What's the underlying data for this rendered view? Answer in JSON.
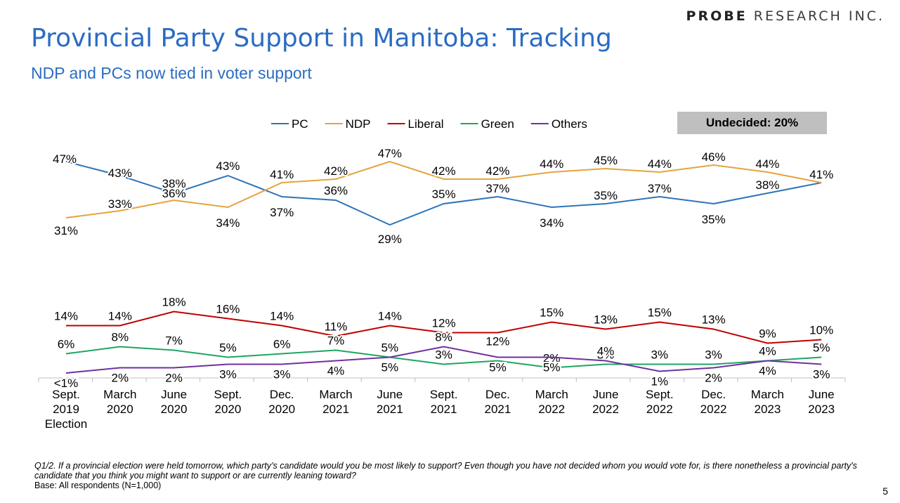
{
  "brand": {
    "bold": "PROBE",
    "rest": "RESEARCH INC."
  },
  "title": "Provincial Party Support in Manitoba: Tracking",
  "subtitle": "NDP and PCs now tied in voter support",
  "undecided": "Undecided: 20%",
  "footnote": {
    "question": "Q1/2. If a provincial election were held tomorrow, which party’s candidate would you be most likely to support? Even though you have not decided whom you would vote for, is there nonetheless a provincial party's candidate that you think you might want to support or are currently leaning toward?",
    "base": "Base: All respondents (N=1,000)"
  },
  "page_number": "5",
  "colors": {
    "pc": "#2e75b6",
    "ndp": "#e6a33c",
    "liberal": "#c00000",
    "green": "#1ea563",
    "others": "#7030a0",
    "axis": "#bfbfbf"
  },
  "chart_data": {
    "type": "line",
    "categories": [
      [
        "Sept.",
        "2019",
        "Election"
      ],
      [
        "March",
        "2020"
      ],
      [
        "June",
        "2020"
      ],
      [
        "Sept.",
        "2020"
      ],
      [
        "Dec.",
        "2020"
      ],
      [
        "March",
        "2021"
      ],
      [
        "June",
        "2021"
      ],
      [
        "Sept.",
        "2021"
      ],
      [
        "Dec.",
        "2021"
      ],
      [
        "March",
        "2022"
      ],
      [
        "June",
        "2022"
      ],
      [
        "Sept.",
        "2022"
      ],
      [
        "Dec.",
        "2022"
      ],
      [
        "March",
        "2023"
      ],
      [
        "June",
        "2023"
      ]
    ],
    "series": [
      {
        "name": "PC",
        "key": "pc",
        "values": [
          47,
          43,
          38,
          43,
          37,
          36,
          29,
          35,
          37,
          34,
          35,
          37,
          35,
          38,
          41
        ],
        "labels": [
          "47%",
          "43%",
          "38%",
          "43%",
          "37%",
          "36%",
          "29%",
          "35%",
          "37%",
          "34%",
          "35%",
          "37%",
          "35%",
          "38%",
          "41%"
        ]
      },
      {
        "name": "NDP",
        "key": "ndp",
        "values": [
          31,
          33,
          36,
          34,
          41,
          42,
          47,
          42,
          42,
          44,
          45,
          44,
          46,
          44,
          41
        ],
        "labels": [
          "31%",
          "33%",
          "36%",
          "34%",
          "41%",
          "42%",
          "47%",
          "42%",
          "42%",
          "44%",
          "45%",
          "44%",
          "46%",
          "44%",
          ""
        ]
      },
      {
        "name": "Liberal",
        "key": "liberal",
        "values": [
          14,
          14,
          18,
          16,
          14,
          11,
          14,
          12,
          12,
          15,
          13,
          15,
          13,
          9,
          10
        ],
        "labels": [
          "14%",
          "14%",
          "18%",
          "16%",
          "14%",
          "11%",
          "14%",
          "12%",
          "12%",
          "15%",
          "13%",
          "15%",
          "13%",
          "9%",
          "10%"
        ]
      },
      {
        "name": "Green",
        "key": "green",
        "values": [
          6,
          8,
          7,
          5,
          6,
          7,
          5,
          3,
          4,
          2,
          3,
          3,
          3,
          4,
          5
        ],
        "labels": [
          "6%",
          "8%",
          "7%",
          "5%",
          "6%",
          "7%",
          "5%",
          "3%",
          "",
          "2%",
          "3%",
          "3%",
          "3%",
          "4%",
          "5%"
        ]
      },
      {
        "name": "Others",
        "key": "others",
        "values": [
          0.5,
          2,
          2,
          3,
          3,
          4,
          5,
          8,
          5,
          5,
          4,
          1,
          2,
          4,
          3
        ],
        "labels": [
          "<1%",
          "2%",
          "2%",
          "3%",
          "3%",
          "4%",
          "5%",
          "8%",
          "5%",
          "5%",
          "4%",
          "1%",
          "2%",
          "4%",
          "3%"
        ]
      }
    ],
    "legend_position": "top",
    "grid": false
  }
}
